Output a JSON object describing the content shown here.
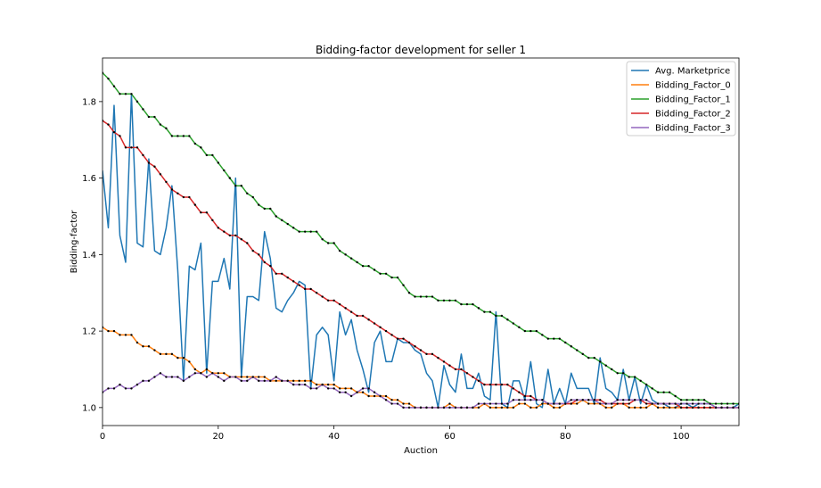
{
  "chart_data": {
    "type": "line",
    "title": "Bidding-factor development for seller 1",
    "xlabel": "Auction",
    "ylabel": "Bidding-factor",
    "xlim": [
      0,
      110
    ],
    "ylim": [
      0.953,
      1.914
    ],
    "xticks": [
      0,
      20,
      40,
      60,
      80,
      100
    ],
    "yticks": [
      1.0,
      1.2,
      1.4,
      1.6,
      1.8
    ],
    "grid": false,
    "legend_position": "top-right",
    "series": [
      {
        "name": "Avg. Marketprice",
        "color": "#1f77b4",
        "marker": false,
        "values": [
          1.62,
          1.47,
          1.79,
          1.45,
          1.38,
          1.82,
          1.43,
          1.42,
          1.65,
          1.41,
          1.4,
          1.47,
          1.58,
          1.36,
          1.07,
          1.37,
          1.36,
          1.43,
          1.09,
          1.33,
          1.33,
          1.39,
          1.31,
          1.6,
          1.08,
          1.29,
          1.29,
          1.28,
          1.46,
          1.39,
          1.26,
          1.25,
          1.28,
          1.3,
          1.33,
          1.32,
          1.05,
          1.19,
          1.21,
          1.19,
          1.07,
          1.25,
          1.19,
          1.23,
          1.15,
          1.1,
          1.04,
          1.17,
          1.2,
          1.12,
          1.12,
          1.18,
          1.17,
          1.17,
          1.15,
          1.14,
          1.09,
          1.07,
          1.0,
          1.11,
          1.06,
          1.04,
          1.14,
          1.05,
          1.05,
          1.09,
          1.03,
          1.02,
          1.25,
          1.01,
          1.0,
          1.07,
          1.07,
          1.02,
          1.12,
          1.01,
          1.0,
          1.1,
          1.01,
          1.05,
          1.01,
          1.09,
          1.05,
          1.05,
          1.05,
          1.01,
          1.13,
          1.05,
          1.04,
          1.02,
          1.1,
          1.02,
          1.08,
          1.01,
          1.06,
          1.02,
          1.01,
          1.01,
          1.0,
          1.0,
          1.01,
          1.01,
          1.0,
          1.01,
          1.01,
          1.01,
          1.0,
          1.0,
          1.0,
          1.0,
          1.01
        ]
      },
      {
        "name": "Bidding_Factor_0",
        "color": "#ff7f0e",
        "marker": true,
        "values": [
          1.21,
          1.2,
          1.2,
          1.19,
          1.19,
          1.19,
          1.17,
          1.16,
          1.16,
          1.15,
          1.14,
          1.14,
          1.14,
          1.13,
          1.13,
          1.12,
          1.1,
          1.09,
          1.1,
          1.09,
          1.09,
          1.09,
          1.08,
          1.08,
          1.08,
          1.08,
          1.08,
          1.08,
          1.08,
          1.07,
          1.07,
          1.07,
          1.07,
          1.07,
          1.07,
          1.07,
          1.07,
          1.06,
          1.06,
          1.06,
          1.06,
          1.05,
          1.05,
          1.05,
          1.04,
          1.04,
          1.03,
          1.03,
          1.03,
          1.03,
          1.02,
          1.02,
          1.01,
          1.01,
          1.0,
          1.0,
          1.0,
          1.0,
          1.0,
          1.0,
          1.01,
          1.0,
          1.0,
          1.0,
          1.0,
          1.0,
          1.01,
          1.0,
          1.0,
          1.0,
          1.0,
          1.0,
          1.01,
          1.01,
          1.0,
          1.0,
          1.01,
          1.01,
          1.0,
          1.0,
          1.01,
          1.01,
          1.01,
          1.02,
          1.01,
          1.01,
          1.01,
          1.0,
          1.0,
          1.01,
          1.01,
          1.0,
          1.0,
          1.0,
          1.0,
          1.01,
          1.0,
          1.0,
          1.0,
          1.0,
          1.0,
          1.0,
          1.0,
          1.0,
          1.0,
          1.0,
          1.0,
          1.0,
          1.0,
          1.0,
          1.0
        ]
      },
      {
        "name": "Bidding_Factor_1",
        "color": "#2ca02c",
        "marker": true,
        "values": [
          1.875,
          1.86,
          1.84,
          1.82,
          1.82,
          1.82,
          1.8,
          1.78,
          1.76,
          1.76,
          1.74,
          1.73,
          1.71,
          1.71,
          1.71,
          1.71,
          1.69,
          1.68,
          1.66,
          1.66,
          1.64,
          1.62,
          1.6,
          1.58,
          1.58,
          1.56,
          1.55,
          1.53,
          1.52,
          1.52,
          1.5,
          1.49,
          1.48,
          1.47,
          1.46,
          1.46,
          1.46,
          1.46,
          1.44,
          1.43,
          1.43,
          1.41,
          1.4,
          1.39,
          1.38,
          1.37,
          1.37,
          1.36,
          1.35,
          1.35,
          1.34,
          1.34,
          1.32,
          1.3,
          1.29,
          1.29,
          1.29,
          1.29,
          1.28,
          1.28,
          1.28,
          1.28,
          1.27,
          1.27,
          1.27,
          1.26,
          1.25,
          1.25,
          1.24,
          1.24,
          1.23,
          1.22,
          1.21,
          1.2,
          1.2,
          1.2,
          1.19,
          1.18,
          1.18,
          1.18,
          1.17,
          1.16,
          1.15,
          1.14,
          1.13,
          1.13,
          1.12,
          1.11,
          1.1,
          1.09,
          1.09,
          1.08,
          1.08,
          1.07,
          1.06,
          1.05,
          1.04,
          1.04,
          1.04,
          1.03,
          1.02,
          1.02,
          1.02,
          1.02,
          1.02,
          1.01,
          1.01,
          1.01,
          1.01,
          1.01,
          1.01
        ]
      },
      {
        "name": "Bidding_Factor_2",
        "color": "#d62728",
        "marker": true,
        "values": [
          1.75,
          1.74,
          1.72,
          1.71,
          1.68,
          1.68,
          1.68,
          1.66,
          1.64,
          1.63,
          1.61,
          1.59,
          1.57,
          1.56,
          1.55,
          1.55,
          1.53,
          1.51,
          1.51,
          1.49,
          1.47,
          1.46,
          1.45,
          1.45,
          1.44,
          1.43,
          1.41,
          1.4,
          1.38,
          1.37,
          1.35,
          1.35,
          1.34,
          1.33,
          1.32,
          1.31,
          1.31,
          1.3,
          1.29,
          1.28,
          1.28,
          1.27,
          1.26,
          1.25,
          1.24,
          1.24,
          1.23,
          1.22,
          1.21,
          1.2,
          1.19,
          1.18,
          1.18,
          1.17,
          1.16,
          1.15,
          1.14,
          1.14,
          1.13,
          1.12,
          1.11,
          1.1,
          1.1,
          1.09,
          1.08,
          1.07,
          1.06,
          1.06,
          1.06,
          1.06,
          1.06,
          1.05,
          1.04,
          1.03,
          1.03,
          1.02,
          1.02,
          1.01,
          1.01,
          1.01,
          1.01,
          1.01,
          1.02,
          1.02,
          1.02,
          1.02,
          1.02,
          1.01,
          1.01,
          1.01,
          1.01,
          1.01,
          1.02,
          1.02,
          1.01,
          1.01,
          1.01,
          1.01,
          1.01,
          1.01,
          1.0,
          1.0,
          1.0,
          1.0,
          1.0,
          1.0,
          1.0,
          1.0,
          1.0,
          1.0,
          1.0
        ]
      },
      {
        "name": "Bidding_Factor_3",
        "color": "#9467bd",
        "marker": true,
        "values": [
          1.04,
          1.05,
          1.05,
          1.06,
          1.05,
          1.05,
          1.06,
          1.07,
          1.07,
          1.08,
          1.09,
          1.08,
          1.08,
          1.08,
          1.07,
          1.08,
          1.09,
          1.09,
          1.08,
          1.09,
          1.08,
          1.07,
          1.08,
          1.08,
          1.07,
          1.07,
          1.08,
          1.07,
          1.07,
          1.07,
          1.08,
          1.07,
          1.07,
          1.06,
          1.06,
          1.06,
          1.05,
          1.05,
          1.06,
          1.05,
          1.05,
          1.04,
          1.04,
          1.03,
          1.04,
          1.05,
          1.05,
          1.04,
          1.03,
          1.02,
          1.01,
          1.01,
          1.0,
          1.0,
          1.0,
          1.0,
          1.0,
          1.0,
          1.0,
          1.0,
          1.0,
          1.0,
          1.0,
          1.0,
          1.0,
          1.01,
          1.01,
          1.01,
          1.01,
          1.01,
          1.01,
          1.02,
          1.02,
          1.02,
          1.02,
          1.02,
          1.02,
          1.01,
          1.01,
          1.01,
          1.01,
          1.02,
          1.02,
          1.02,
          1.02,
          1.02,
          1.01,
          1.01,
          1.01,
          1.02,
          1.02,
          1.02,
          1.02,
          1.02,
          1.02,
          1.01,
          1.01,
          1.01,
          1.01,
          1.01,
          1.01,
          1.01,
          1.01,
          1.01,
          1.01,
          1.01,
          1.0,
          1.0,
          1.0,
          1.0,
          1.0
        ]
      }
    ]
  }
}
